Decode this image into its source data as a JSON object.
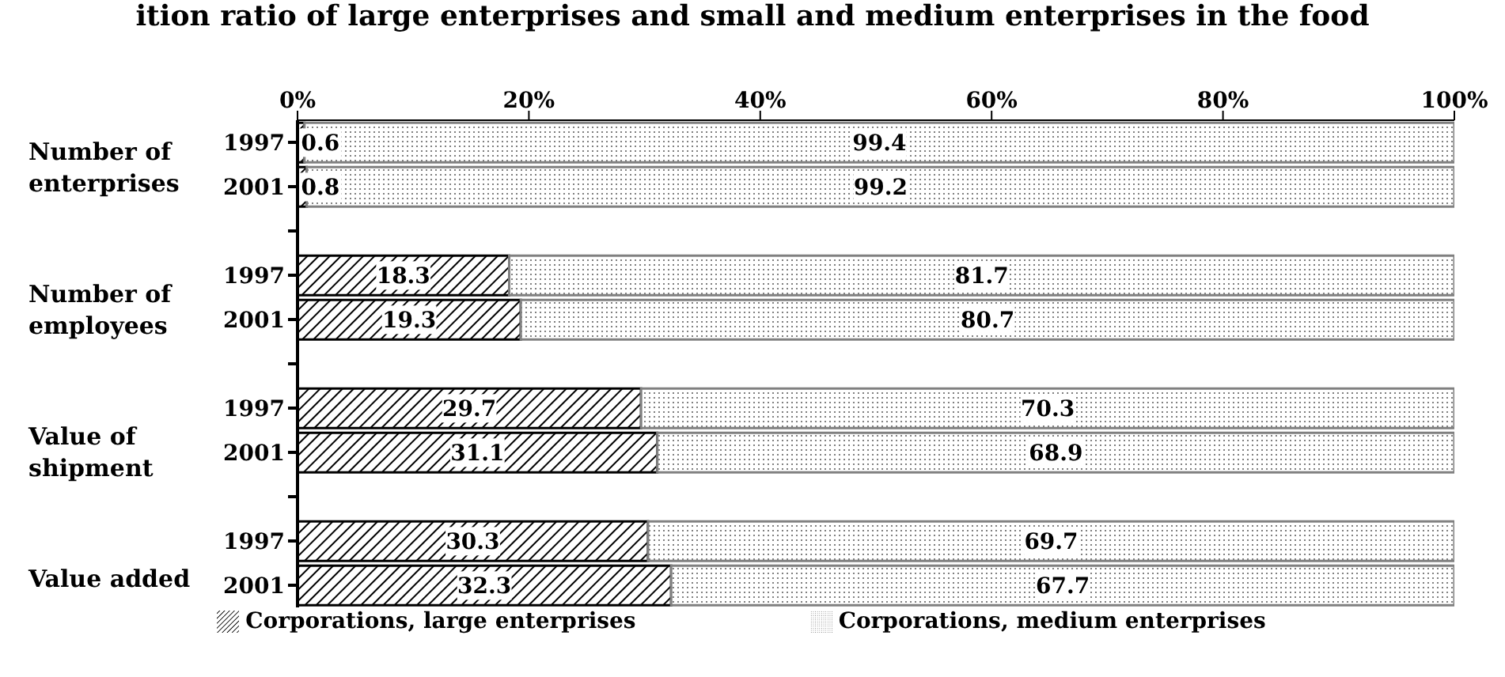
{
  "chart_data": {
    "type": "bar",
    "orientation": "horizontal",
    "stacked": true,
    "title": "ition ratio of large enterprises and small and medium enterprises in the food",
    "categories": [
      "1997",
      "2001",
      null,
      "1997",
      "2001",
      null,
      "1997",
      "2001",
      null,
      "1997",
      "2001"
    ],
    "series": [
      {
        "name": "Corporations, large enterprises",
        "color": "#000000",
        "values": [
          0.6,
          0.8,
          null,
          18.3,
          19.3,
          null,
          29.7,
          31.1,
          null,
          30.3,
          32.3
        ]
      },
      {
        "name": "Corporations, medium enterprises",
        "color": "#808080",
        "values": [
          99.4,
          99.2,
          null,
          81.7,
          80.7,
          null,
          70.3,
          68.9,
          null,
          69.7,
          67.7
        ]
      }
    ],
    "xlim": [
      0,
      100
    ],
    "xticks": [
      {
        "value": 0,
        "label": "0%"
      },
      {
        "value": 20,
        "label": "20%"
      },
      {
        "value": 40,
        "label": "40%"
      },
      {
        "value": 60,
        "label": "60%"
      },
      {
        "value": 80,
        "label": "80%"
      },
      {
        "value": 100,
        "label": "100%"
      }
    ],
    "annotations": [
      "Number of enterprises",
      "Number of employees",
      "Value of shipment",
      "Value added"
    ],
    "data_labels": true,
    "legend": "bottom",
    "grid": false
  }
}
